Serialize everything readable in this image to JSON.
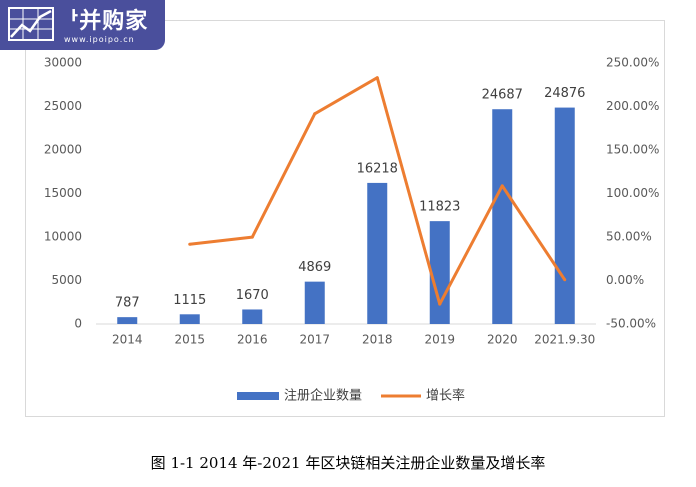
{
  "logo": {
    "name": "ᅡ并购家",
    "url": "www.ipoipo.cn"
  },
  "caption": "图 1-1 2014 年-2021 年区块链相关注册企业数量及增长率",
  "colors": {
    "bar": "#4472c4",
    "line": "#ed7d31",
    "axis_text": "#595959",
    "label_text": "#404040",
    "logo_bg": "#4a4f9c"
  },
  "chart_data": {
    "type": "bar",
    "categories": [
      "2014",
      "2015",
      "2016",
      "2017",
      "2018",
      "2019",
      "2020",
      "2021.9.30"
    ],
    "series": [
      {
        "name": "注册企业数量",
        "type": "bar",
        "axis": "left",
        "values": [
          787,
          1115,
          1670,
          4869,
          16218,
          11823,
          24687,
          24876
        ],
        "labels": [
          "787",
          "1115",
          "1670",
          "4869",
          "16218",
          "11823",
          "24687",
          "24876"
        ]
      },
      {
        "name": "增长率",
        "type": "line",
        "axis": "right",
        "values": [
          null,
          41.7,
          49.8,
          191.6,
          233.1,
          -27.1,
          108.8,
          0.8
        ]
      }
    ],
    "y_left": {
      "min": 0,
      "max": 30000,
      "ticks": [
        "0",
        "5000",
        "10000",
        "15000",
        "20000",
        "25000",
        "30000"
      ]
    },
    "y_right": {
      "min": -50,
      "max": 250,
      "ticks": [
        "-50.00%",
        "0.00%",
        "50.00%",
        "100.00%",
        "150.00%",
        "200.00%",
        "250.00%"
      ]
    },
    "legend_position": "bottom",
    "grid": false
  }
}
